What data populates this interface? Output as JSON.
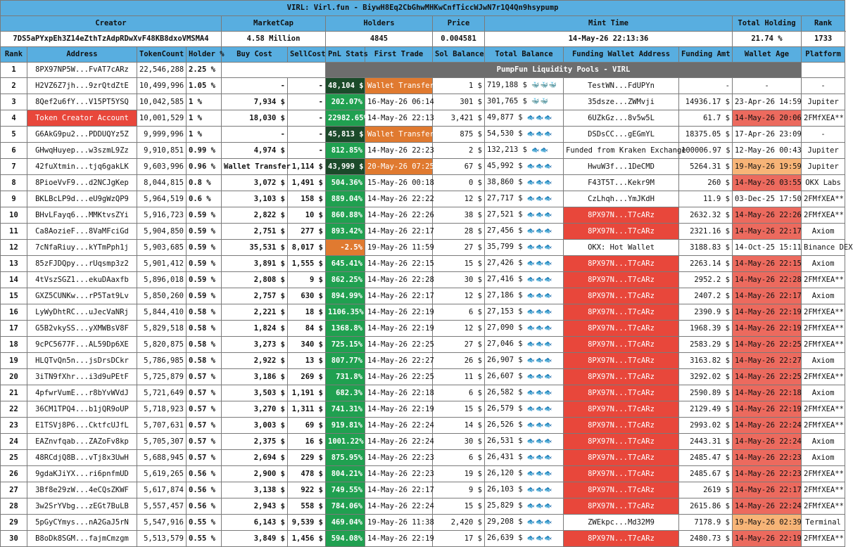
{
  "title": "VIRL: Virl.fun - BiywH8Eq2CbGhwMHKwCnfTiccWJwN7r1Q4Qn9hsypump",
  "summary_headers": {
    "creator": "Creator",
    "marketcap": "MarketCap",
    "holders": "Holders",
    "price": "Price",
    "mint_time": "Mint Time",
    "total_holding": "Total Holding",
    "rank": "Rank"
  },
  "summary": {
    "creator": "7DS5aPYxpEh3Z14eZthTzAdpRDwXvF48KB8dxoVMSMA4",
    "marketcap": "4.58 Million",
    "holders": "4845",
    "price": "0.004581",
    "mint_time": "14-May-26 22:13:36",
    "total_holding": "21.74 %",
    "rank": "1733"
  },
  "columns": [
    "Rank",
    "Address",
    "TokenCount",
    "Holder %",
    "Buy Cost",
    "SellCost",
    "PnL Stats",
    "First Trade",
    "Sol Balance",
    "Total Balance",
    "Funding Wallet Address",
    "Funding Amt",
    "Wallet Age",
    "Platform"
  ],
  "pools_label": "PumpFun Liquidity Pools - VIRL",
  "colors": {
    "header_blue": "#58aee0",
    "pnl_green": "#20a050",
    "pnl_dark_green": "#1b4a2a",
    "orange": "#e07a30",
    "red": "#e8473b",
    "peach": "#f7b477"
  },
  "rows": [
    {
      "rank": "1",
      "address": "8PX97NP5W...FvAT7cARz",
      "tokens": "22,546,288",
      "holder": "2.25 %"
    },
    {
      "rank": "2",
      "address": "H2VZ6Z7jh...9zrQtdZtE",
      "tokens": "10,499,996",
      "holder": "1.05 %",
      "buy": "-",
      "sell": "-",
      "pnl": "48,104 $",
      "first": "Wallet Transfer",
      "sol": "1 $",
      "total": "719,188 $",
      "icons": "🐳🐳🐳",
      "funding": "TestWN...FdUPYn",
      "amt": "-",
      "age": "-",
      "platform": "-"
    },
    {
      "rank": "3",
      "address": "8Qef2u6fY...V15PT5YSQ",
      "tokens": "10,042,585",
      "holder": "1 %",
      "buy": "7,934 $",
      "sell": "-",
      "pnl": "202.07%",
      "first": "16-May-26 06:14",
      "sol": "301 $",
      "total": "301,765 $",
      "icons": "🐳🐳",
      "funding": "35dsze...ZWMvji",
      "amt": "14936.17 $",
      "age": "23-Apr-26 14:59",
      "platform": "Jupiter"
    },
    {
      "rank": "4",
      "address": "Token Creator Account",
      "tokens": "10,001,529",
      "holder": "1 %",
      "buy": "18,030 $",
      "sell": "-",
      "pnl": "22982.65%",
      "first": "14-May-26 22:13",
      "sol": "3,421 $",
      "total": "49,877 $",
      "icons": "🐟🐟🐟",
      "funding": "6UZkGz...8v5w5L",
      "amt": "61.7 $",
      "age": "14-May-26 20:06",
      "platform": "2FMfXEA**"
    },
    {
      "rank": "5",
      "address": "G6AkG9pu2...PDDUQYz5Z",
      "tokens": "9,999,996",
      "holder": "1 %",
      "buy": "-",
      "sell": "-",
      "pnl": "45,813 $",
      "first": "Wallet Transfer",
      "sol": "875 $",
      "total": "54,530 $",
      "icons": "🐟🐟🐟",
      "funding": "DSDsCC...gEGmYL",
      "amt": "18375.05 $",
      "age": "17-Apr-26 23:09",
      "platform": "-"
    },
    {
      "rank": "6",
      "address": "GHwqHuyep...w3szmL9Zz",
      "tokens": "9,910,851",
      "holder": "0.99 %",
      "buy": "4,974 $",
      "sell": "-",
      "pnl": "812.85%",
      "first": "14-May-26 22:23",
      "sol": "2 $",
      "total": "132,213 $",
      "icons": "🐟🐟",
      "funding": "Funded from Kraken Exchange",
      "amt": "100006.97 $",
      "age": "12-May-26 00:43",
      "platform": "Jupiter"
    },
    {
      "rank": "7",
      "address": "42fuXtmin...tjq6gakLK",
      "tokens": "9,603,996",
      "holder": "0.96 %",
      "buy": "Wallet Transfer",
      "sell": "1,114 $",
      "pnl": "43,999 $",
      "first": "20-May-26 07:25",
      "sol": "67 $",
      "total": "45,992 $",
      "icons": "🐟🐟🐟",
      "funding": "HwuW3f...1DeCMD",
      "amt": "5264.31 $",
      "age": "19-May-26 19:59",
      "platform": "Jupiter"
    },
    {
      "rank": "8",
      "address": "8PioeVvF9...d2NCJgKep",
      "tokens": "8,044,815",
      "holder": "0.8 %",
      "buy": "3,072 $",
      "sell": "1,491 $",
      "pnl": "504.36%",
      "first": "15-May-26 00:18",
      "sol": "0 $",
      "total": "38,860 $",
      "icons": "🐟🐟🐟",
      "funding": "F43T5T...Kekr9M",
      "amt": "260 $",
      "age": "14-May-26 03:55",
      "platform": "OKX Labs"
    },
    {
      "rank": "9",
      "address": "BKLBcLP9d...eU9gWzQP9",
      "tokens": "5,964,519",
      "holder": "0.6 %",
      "buy": "3,103 $",
      "sell": "158 $",
      "pnl": "889.04%",
      "first": "14-May-26 22:22",
      "sol": "12 $",
      "total": "27,717 $",
      "icons": "🐟🐟🐟",
      "funding": "CzLhqh...YmJKdH",
      "amt": "11.9 $",
      "age": "03-Dec-25 17:50",
      "platform": "2FMfXEA**"
    },
    {
      "rank": "10",
      "address": "BHvLFayq6...MMKtvsZYi",
      "tokens": "5,916,723",
      "holder": "0.59 %",
      "buy": "2,822 $",
      "sell": "10 $",
      "pnl": "860.88%",
      "first": "14-May-26 22:26",
      "sol": "38 $",
      "total": "27,521 $",
      "icons": "🐟🐟🐟",
      "funding": "8PX97N...T7cARz",
      "amt": "2632.32 $",
      "age": "14-May-26 22:26",
      "platform": "2FMfXEA**"
    },
    {
      "rank": "11",
      "address": "Ca8AozieF...8VaMFciGd",
      "tokens": "5,904,850",
      "holder": "0.59 %",
      "buy": "2,751 $",
      "sell": "277 $",
      "pnl": "893.42%",
      "first": "14-May-26 22:17",
      "sol": "28 $",
      "total": "27,456 $",
      "icons": "🐟🐟🐟",
      "funding": "8PX97N...T7cARz",
      "amt": "2321.16 $",
      "age": "14-May-26 22:17",
      "platform": "Axiom"
    },
    {
      "rank": "12",
      "address": "7cNfaRiuy...kYTmPph1j",
      "tokens": "5,903,685",
      "holder": "0.59 %",
      "buy": "35,531 $",
      "sell": "8,017 $",
      "pnl": "-2.5%",
      "first": "19-May-26 11:59",
      "sol": "27 $",
      "total": "35,799 $",
      "icons": "🐟🐟🐟",
      "funding": "OKX: Hot Wallet",
      "amt": "3188.83 $",
      "age": "14-Oct-25 15:11",
      "platform": "Binance DEX"
    },
    {
      "rank": "13",
      "address": "85zFJDQpy...rUqsmp3z2",
      "tokens": "5,901,412",
      "holder": "0.59 %",
      "buy": "3,891 $",
      "sell": "1,555 $",
      "pnl": "645.41%",
      "first": "14-May-26 22:15",
      "sol": "15 $",
      "total": "27,426 $",
      "icons": "🐟🐟🐟",
      "funding": "8PX97N...T7cARz",
      "amt": "2263.14 $",
      "age": "14-May-26 22:15",
      "platform": "Axiom"
    },
    {
      "rank": "14",
      "address": "4tVszSGZ1...ekuDAaxfb",
      "tokens": "5,896,018",
      "holder": "0.59 %",
      "buy": "2,808 $",
      "sell": "9 $",
      "pnl": "862.25%",
      "first": "14-May-26 22:28",
      "sol": "30 $",
      "total": "27,416 $",
      "icons": "🐟🐟🐟",
      "funding": "8PX97N...T7cARz",
      "amt": "2952.2 $",
      "age": "14-May-26 22:28",
      "platform": "2FMfXEA**"
    },
    {
      "rank": "15",
      "address": "GXZ5CUNKw...rP5Tat9Lv",
      "tokens": "5,850,260",
      "holder": "0.59 %",
      "buy": "2,757 $",
      "sell": "630 $",
      "pnl": "894.99%",
      "first": "14-May-26 22:17",
      "sol": "12 $",
      "total": "27,186 $",
      "icons": "🐟🐟🐟",
      "funding": "8PX97N...T7cARz",
      "amt": "2407.2 $",
      "age": "14-May-26 22:17",
      "platform": "Axiom"
    },
    {
      "rank": "16",
      "address": "LyWyDhtRC...uJecVaNRj",
      "tokens": "5,844,410",
      "holder": "0.58 %",
      "buy": "2,221 $",
      "sell": "18 $",
      "pnl": "1106.35%",
      "first": "14-May-26 22:19",
      "sol": "6 $",
      "total": "27,153 $",
      "icons": "🐟🐟🐟",
      "funding": "8PX97N...T7cARz",
      "amt": "2390.9 $",
      "age": "14-May-26 22:19",
      "platform": "2FMfXEA**"
    },
    {
      "rank": "17",
      "address": "G5B2vkySS...yXMWBsV8F",
      "tokens": "5,829,518",
      "holder": "0.58 %",
      "buy": "1,824 $",
      "sell": "84 $",
      "pnl": "1368.8%",
      "first": "14-May-26 22:19",
      "sol": "12 $",
      "total": "27,090 $",
      "icons": "🐟🐟🐟",
      "funding": "8PX97N...T7cARz",
      "amt": "1968.39 $",
      "age": "14-May-26 22:19",
      "platform": "2FMfXEA**"
    },
    {
      "rank": "18",
      "address": "9cPC5677F...AL59Dp6XE",
      "tokens": "5,820,875",
      "holder": "0.58 %",
      "buy": "3,273 $",
      "sell": "340 $",
      "pnl": "725.15%",
      "first": "14-May-26 22:25",
      "sol": "27 $",
      "total": "27,046 $",
      "icons": "🐟🐟🐟",
      "funding": "8PX97N...T7cARz",
      "amt": "2583.29 $",
      "age": "14-May-26 22:25",
      "platform": "2FMfXEA**"
    },
    {
      "rank": "19",
      "address": "HLQTvQn5n...jsDrsDCkr",
      "tokens": "5,786,985",
      "holder": "0.58 %",
      "buy": "2,922 $",
      "sell": "13 $",
      "pnl": "807.77%",
      "first": "14-May-26 22:27",
      "sol": "26 $",
      "total": "26,907 $",
      "icons": "🐟🐟🐟",
      "funding": "8PX97N...T7cARz",
      "amt": "3163.82 $",
      "age": "14-May-26 22:27",
      "platform": "Axiom"
    },
    {
      "rank": "20",
      "address": "3iTN9fXhr...i3d9uPEtF",
      "tokens": "5,725,879",
      "holder": "0.57 %",
      "buy": "3,186 $",
      "sell": "269 $",
      "pnl": "731.8%",
      "first": "14-May-26 22:25",
      "sol": "11 $",
      "total": "26,607 $",
      "icons": "🐟🐟🐟",
      "funding": "8PX97N...T7cARz",
      "amt": "3292.02 $",
      "age": "14-May-26 22:25",
      "platform": "2FMfXEA**"
    },
    {
      "rank": "21",
      "address": "4pfwrVumE...r8bYvWVdJ",
      "tokens": "5,721,649",
      "holder": "0.57 %",
      "buy": "3,503 $",
      "sell": "1,191 $",
      "pnl": "682.3%",
      "first": "14-May-26 22:18",
      "sol": "6 $",
      "total": "26,582 $",
      "icons": "🐟🐟🐟",
      "funding": "8PX97N...T7cARz",
      "amt": "2590.89 $",
      "age": "14-May-26 22:18",
      "platform": "Axiom"
    },
    {
      "rank": "22",
      "address": "36CM1TPQ4...b1jQR9oUP",
      "tokens": "5,718,923",
      "holder": "0.57 %",
      "buy": "3,270 $",
      "sell": "1,311 $",
      "pnl": "741.31%",
      "first": "14-May-26 22:19",
      "sol": "15 $",
      "total": "26,579 $",
      "icons": "🐟🐟🐟",
      "funding": "8PX97N...T7cARz",
      "amt": "2129.49 $",
      "age": "14-May-26 22:19",
      "platform": "2FMfXEA**"
    },
    {
      "rank": "23",
      "address": "E1TSVj8P6...CktfcUJfL",
      "tokens": "5,707,631",
      "holder": "0.57 %",
      "buy": "3,003 $",
      "sell": "69 $",
      "pnl": "919.81%",
      "first": "14-May-26 22:24",
      "sol": "14 $",
      "total": "26,526 $",
      "icons": "🐟🐟🐟",
      "funding": "8PX97N...T7cARz",
      "amt": "2993.02 $",
      "age": "14-May-26 22:24",
      "platform": "2FMfXEA**"
    },
    {
      "rank": "24",
      "address": "EAZnvfqab...ZAZoFv8kp",
      "tokens": "5,705,307",
      "holder": "0.57 %",
      "buy": "2,375 $",
      "sell": "16 $",
      "pnl": "1001.22%",
      "first": "14-May-26 22:24",
      "sol": "30 $",
      "total": "26,531 $",
      "icons": "🐟🐟🐟",
      "funding": "8PX97N...T7cARz",
      "amt": "2443.31 $",
      "age": "14-May-26 22:24",
      "platform": "Axiom"
    },
    {
      "rank": "25",
      "address": "48RCdjQ8B...vTj8x3UwH",
      "tokens": "5,688,945",
      "holder": "0.57 %",
      "buy": "2,694 $",
      "sell": "229 $",
      "pnl": "875.95%",
      "first": "14-May-26 22:23",
      "sol": "6 $",
      "total": "26,431 $",
      "icons": "🐟🐟🐟",
      "funding": "8PX97N...T7cARz",
      "amt": "2485.47 $",
      "age": "14-May-26 22:23",
      "platform": "Axiom"
    },
    {
      "rank": "26",
      "address": "9gdaKJiYX...ri6pnfmUD",
      "tokens": "5,619,265",
      "holder": "0.56 %",
      "buy": "2,900 $",
      "sell": "478 $",
      "pnl": "804.21%",
      "first": "14-May-26 22:23",
      "sol": "19 $",
      "total": "26,120 $",
      "icons": "🐟🐟🐟",
      "funding": "8PX97N...T7cARz",
      "amt": "2485.67 $",
      "age": "14-May-26 22:23",
      "platform": "2FMfXEA**"
    },
    {
      "rank": "27",
      "address": "3Bf8e29zW...4eCQsZKWF",
      "tokens": "5,617,874",
      "holder": "0.56 %",
      "buy": "3,138 $",
      "sell": "922 $",
      "pnl": "749.55%",
      "first": "14-May-26 22:17",
      "sol": "9 $",
      "total": "26,103 $",
      "icons": "🐟🐟🐟",
      "funding": "8PX97N...T7cARz",
      "amt": "2619 $",
      "age": "14-May-26 22:17",
      "platform": "2FMfXEA**"
    },
    {
      "rank": "28",
      "address": "3w2SrYVbg...zEGt7BuLB",
      "tokens": "5,557,457",
      "holder": "0.56 %",
      "buy": "2,943 $",
      "sell": "558 $",
      "pnl": "784.06%",
      "first": "14-May-26 22:24",
      "sol": "15 $",
      "total": "25,829 $",
      "icons": "🐟🐟🐟",
      "funding": "8PX97N...T7cARz",
      "amt": "2615.86 $",
      "age": "14-May-26 22:24",
      "platform": "2FMfXEA**"
    },
    {
      "rank": "29",
      "address": "5pGyCYmys...nA2GaJ5rN",
      "tokens": "5,547,916",
      "holder": "0.55 %",
      "buy": "6,143 $",
      "sell": "9,539 $",
      "pnl": "469.04%",
      "first": "19-May-26 11:38",
      "sol": "2,420 $",
      "total": "29,208 $",
      "icons": "🐟🐟🐟",
      "funding": "ZWEkpc...Md32M9",
      "amt": "7178.9 $",
      "age": "19-May-26 02:39",
      "platform": "Terminal"
    },
    {
      "rank": "30",
      "address": "B8oDk8SGM...fajmCmzgm",
      "tokens": "5,513,579",
      "holder": "0.55 %",
      "buy": "3,849 $",
      "sell": "1,456 $",
      "pnl": "594.08%",
      "first": "14-May-26 22:19",
      "sol": "17 $",
      "total": "26,639 $",
      "icons": "🐟🐟🐟",
      "funding": "8PX97N...T7cARz",
      "amt": "2480.73 $",
      "age": "14-May-26 22:19",
      "platform": "2FMfXEA**"
    }
  ]
}
